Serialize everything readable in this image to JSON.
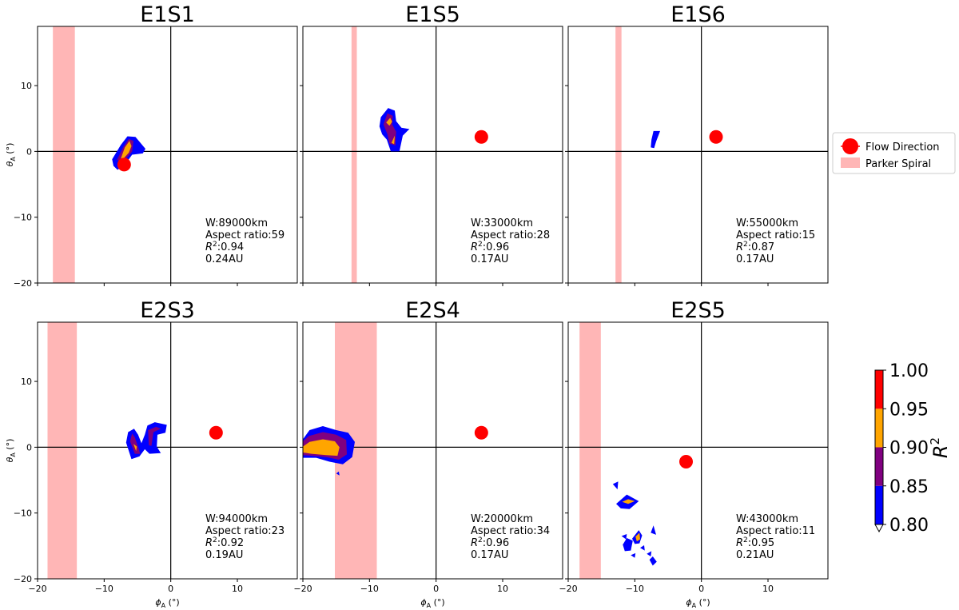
{
  "figure": {
    "x_label": "ϕ",
    "x_sub": "A",
    "x_unit": "(°)",
    "y_label": "θ",
    "y_sub": "A",
    "y_unit": "(°)"
  },
  "legend": {
    "flow_label": "Flow Direction",
    "parker_label": "Parker Spiral"
  },
  "colorbar": {
    "label": "R",
    "label_sup": "2",
    "levels": [
      0.8,
      0.85,
      0.9,
      0.95,
      1.0
    ],
    "tick_labels": [
      "0.80",
      "0.85",
      "0.90",
      "0.95",
      "1.00"
    ],
    "colors": [
      "#0000ff",
      "#800080",
      "#ffa500",
      "#ff0000"
    ]
  },
  "colors": {
    "flow": "#ff0000",
    "parker": "#ffb6b6",
    "axis": "#000000"
  },
  "chart_data": [
    {
      "type": "contour",
      "title": "E1S1",
      "xlim": [
        -20,
        19
      ],
      "ylim": [
        -20,
        19
      ],
      "xticks": [
        -20,
        -10,
        0,
        10
      ],
      "yticks": [
        -20,
        -10,
        0,
        10
      ],
      "flow_direction": [
        -7,
        -2
      ],
      "parker_spiral": [
        -17.7,
        -14.4
      ],
      "annotations": {
        "w": "W:89000km",
        "aspect": "Aspect ratio:59",
        "r2": "0.94",
        "au": "0.24AU"
      },
      "contours": [
        {
          "level": 0.8,
          "points": [
            [
              -8.8,
              -1.2
            ],
            [
              -7.5,
              1
            ],
            [
              -6.5,
              2.3
            ],
            [
              -5.3,
              2.2
            ],
            [
              -3.8,
              0.4
            ],
            [
              -4.2,
              -0.3
            ],
            [
              -5.8,
              -0.5
            ],
            [
              -7,
              -2.2
            ],
            [
              -8,
              -2.8
            ],
            [
              -8.6,
              -2.2
            ]
          ]
        },
        {
          "level": 0.85,
          "points": [
            [
              -8.1,
              -1.3
            ],
            [
              -7.1,
              0.7
            ],
            [
              -6.3,
              1.9
            ],
            [
              -5.6,
              1.6
            ],
            [
              -5.8,
              0
            ],
            [
              -7.1,
              -1.6
            ]
          ]
        },
        {
          "level": 0.9,
          "points": [
            [
              -7.5,
              -1.1
            ],
            [
              -6.9,
              0.6
            ],
            [
              -6.2,
              1.6
            ],
            [
              -5.9,
              0.8
            ],
            [
              -6.3,
              -0.2
            ],
            [
              -7.1,
              -1.1
            ]
          ]
        }
      ]
    },
    {
      "type": "contour",
      "title": "E1S5",
      "xlim": [
        -20,
        19
      ],
      "ylim": [
        -20,
        19
      ],
      "xticks": [
        -20,
        -10,
        0,
        10
      ],
      "yticks": [
        -20,
        -10,
        0,
        10
      ],
      "flow_direction": [
        6.8,
        2.2
      ],
      "parker_spiral": [
        -12.7,
        -11.9
      ],
      "annotations": {
        "w": "W:33000km",
        "aspect": "Aspect ratio:28",
        "r2": "0.96",
        "au": "0.17AU"
      },
      "contours": [
        {
          "level": 0.8,
          "points": [
            [
              -8.5,
              3.8
            ],
            [
              -8.3,
              5.2
            ],
            [
              -7.2,
              6.6
            ],
            [
              -6.2,
              6.2
            ],
            [
              -6,
              4.6
            ],
            [
              -5.2,
              3.6
            ],
            [
              -4,
              3.4
            ],
            [
              -5,
              2.4
            ],
            [
              -5.5,
              0
            ],
            [
              -6.8,
              0
            ],
            [
              -7.4,
              1.8
            ],
            [
              -8.1,
              2.6
            ]
          ]
        },
        {
          "level": 0.85,
          "points": [
            [
              -7.9,
              4.1
            ],
            [
              -7.3,
              5.8
            ],
            [
              -6.5,
              5.4
            ],
            [
              -6.6,
              4.1
            ],
            [
              -6,
              3
            ],
            [
              -6.1,
              0.9
            ],
            [
              -7,
              1.2
            ],
            [
              -7.3,
              2.6
            ]
          ]
        },
        {
          "level": 0.9,
          "points": [
            [
              -7.5,
              4.4
            ],
            [
              -6.9,
              5.1
            ],
            [
              -6.6,
              4.5
            ],
            [
              -7,
              3.9
            ]
          ]
        },
        {
          "level": 0.9,
          "points": [
            [
              -6.7,
              1.3
            ],
            [
              -6.2,
              2.4
            ],
            [
              -6.3,
              1.1
            ]
          ]
        }
      ]
    },
    {
      "type": "contour",
      "title": "E1S6",
      "xlim": [
        -20,
        19
      ],
      "ylim": [
        -20,
        19
      ],
      "xticks": [
        -20,
        -10,
        0,
        10
      ],
      "yticks": [
        -20,
        -10,
        0,
        10
      ],
      "flow_direction": [
        2.2,
        2.2
      ],
      "parker_spiral": [
        -12.9,
        -12.0
      ],
      "annotations": {
        "w": "W:55000km",
        "aspect": "Aspect ratio:15",
        "r2": "0.87",
        "au": "0.17AU"
      },
      "contours": [
        {
          "level": 0.8,
          "points": [
            [
              -7.5,
              1.8
            ],
            [
              -7.2,
              3.1
            ],
            [
              -6.2,
              3.1
            ],
            [
              -6.8,
              1.5
            ],
            [
              -7.1,
              0.5
            ],
            [
              -7.6,
              0.6
            ]
          ]
        }
      ]
    },
    {
      "type": "contour",
      "title": "E2S3",
      "xlim": [
        -20,
        19
      ],
      "ylim": [
        -20,
        19
      ],
      "xticks": [
        -20,
        -10,
        0,
        10
      ],
      "yticks": [
        -20,
        -10,
        0,
        10
      ],
      "flow_direction": [
        6.8,
        2.2
      ],
      "parker_spiral": [
        -18.5,
        -14.1
      ],
      "annotations": {
        "w": "W:94000km",
        "aspect": "Aspect ratio:23",
        "r2": "0.92",
        "au": "0.19AU"
      },
      "contours": [
        {
          "level": 0.8,
          "points": [
            [
              -6.7,
              0.7
            ],
            [
              -6.4,
              2.3
            ],
            [
              -5.5,
              2.8
            ],
            [
              -4.9,
              1.9
            ],
            [
              -4.4,
              0.6
            ],
            [
              -3.9,
              1.9
            ],
            [
              -3.5,
              3.3
            ],
            [
              -2.4,
              3.8
            ],
            [
              -0.6,
              3.4
            ],
            [
              -0.8,
              2.2
            ],
            [
              -2,
              1.9
            ],
            [
              -2.1,
              0.1
            ],
            [
              -1.5,
              -0.9
            ],
            [
              -3.2,
              -1
            ],
            [
              -3.9,
              -0.3
            ],
            [
              -4.7,
              -1.4
            ],
            [
              -5.9,
              -1.8
            ]
          ]
        },
        {
          "level": 0.85,
          "points": [
            [
              -6.1,
              0.9
            ],
            [
              -5.8,
              2.1
            ],
            [
              -5.4,
              1.5
            ],
            [
              -4.8,
              -0.3
            ],
            [
              -4.6,
              -1
            ],
            [
              -5.4,
              -1
            ]
          ]
        },
        {
          "level": 0.85,
          "points": [
            [
              -3.4,
              2.6
            ],
            [
              -2.2,
              3.1
            ],
            [
              -1.5,
              2.8
            ],
            [
              -2.6,
              2.3
            ],
            [
              -2.9,
              0.2
            ],
            [
              -3.3,
              0.3
            ]
          ]
        },
        {
          "level": 0.9,
          "points": [
            [
              -5.6,
              0.5
            ],
            [
              -5.1,
              0.1
            ],
            [
              -5.2,
              -0.6
            ]
          ]
        }
      ]
    },
    {
      "type": "contour",
      "title": "E2S4",
      "xlim": [
        -20,
        19
      ],
      "ylim": [
        -20,
        19
      ],
      "xticks": [
        -20,
        -10,
        0,
        10
      ],
      "yticks": [
        -20,
        -10,
        0,
        10
      ],
      "flow_direction": [
        6.8,
        2.2
      ],
      "parker_spiral": [
        -15.2,
        -8.9
      ],
      "annotations": {
        "w": "W:20000km",
        "aspect": "Aspect ratio:34",
        "r2": "0.96",
        "au": "0.17AU"
      },
      "contours": [
        {
          "level": 0.8,
          "points": [
            [
              -20,
              1.2
            ],
            [
              -19,
              2.6
            ],
            [
              -17,
              3.2
            ],
            [
              -15,
              2.6
            ],
            [
              -13.2,
              2.2
            ],
            [
              -12.2,
              0.8
            ],
            [
              -12.6,
              -1.5
            ],
            [
              -14,
              -2.6
            ],
            [
              -16,
              -2.2
            ],
            [
              -18,
              -1.6
            ],
            [
              -20,
              -1.6
            ]
          ]
        },
        {
          "level": 0.85,
          "points": [
            [
              -20,
              0.9
            ],
            [
              -19.1,
              1.7
            ],
            [
              -17,
              2.3
            ],
            [
              -15,
              1.9
            ],
            [
              -13.5,
              1.1
            ],
            [
              -13.4,
              -1.1
            ],
            [
              -14.6,
              -1.9
            ],
            [
              -16.5,
              -1.5
            ],
            [
              -18.5,
              -1.3
            ],
            [
              -20,
              -1.2
            ]
          ]
        },
        {
          "level": 0.9,
          "points": [
            [
              -20,
              0.1
            ],
            [
              -19,
              0.8
            ],
            [
              -17,
              1.2
            ],
            [
              -15.2,
              0.9
            ],
            [
              -14.5,
              0
            ],
            [
              -14.8,
              -1.3
            ],
            [
              -16.5,
              -1.2
            ],
            [
              -18.7,
              -1
            ],
            [
              -20,
              -0.8
            ]
          ]
        },
        {
          "level": 0.8,
          "points": [
            [
              -15,
              -4
            ],
            [
              -14.6,
              -3.7
            ],
            [
              -14.5,
              -4.3
            ]
          ]
        }
      ]
    },
    {
      "type": "contour",
      "title": "E2S5",
      "xlim": [
        -20,
        19
      ],
      "ylim": [
        -20,
        19
      ],
      "xticks": [
        -20,
        -10,
        0,
        10
      ],
      "yticks": [
        -20,
        -10,
        0,
        10
      ],
      "flow_direction": [
        -2.3,
        -2.2
      ],
      "parker_spiral": [
        -18.3,
        -15.1
      ],
      "annotations": {
        "w": "W:43000km",
        "aspect": "Aspect ratio:11",
        "r2": "0.95",
        "au": "0.21AU"
      },
      "contours": [
        {
          "level": 0.8,
          "points": [
            [
              -13.3,
              -5.6
            ],
            [
              -12.5,
              -5.2
            ],
            [
              -12.6,
              -6.4
            ]
          ]
        },
        {
          "level": 0.8,
          "points": [
            [
              -12.8,
              -8.6
            ],
            [
              -11.2,
              -7.2
            ],
            [
              -9.4,
              -8.2
            ],
            [
              -10.8,
              -9.4
            ],
            [
              -12.1,
              -9.3
            ]
          ]
        },
        {
          "level": 0.9,
          "points": [
            [
              -11.9,
              -8.3
            ],
            [
              -11,
              -7.9
            ],
            [
              -10,
              -8.2
            ],
            [
              -11,
              -8.6
            ]
          ]
        },
        {
          "level": 0.8,
          "points": [
            [
              -12,
              -13.5
            ],
            [
              -11.2,
              -13.2
            ],
            [
              -11.3,
              -14
            ]
          ]
        },
        {
          "level": 0.8,
          "points": [
            [
              -11.8,
              -14.8
            ],
            [
              -11.2,
              -13.8
            ],
            [
              -10.3,
              -14.2
            ],
            [
              -10.6,
              -15.7
            ],
            [
              -11.5,
              -15.8
            ]
          ]
        },
        {
          "level": 0.8,
          "points": [
            [
              -10.4,
              -13.9
            ],
            [
              -9.4,
              -12.6
            ],
            [
              -8.9,
              -13.4
            ],
            [
              -9.3,
              -14.6
            ],
            [
              -10,
              -14.7
            ]
          ]
        },
        {
          "level": 0.9,
          "points": [
            [
              -9.9,
              -13.6
            ],
            [
              -9.3,
              -13
            ],
            [
              -9.2,
              -14
            ],
            [
              -9.7,
              -14.3
            ]
          ]
        },
        {
          "level": 0.8,
          "points": [
            [
              -10.6,
              -16.4
            ],
            [
              -9.9,
              -16.1
            ],
            [
              -10,
              -16.8
            ]
          ]
        },
        {
          "level": 0.8,
          "points": [
            [
              -9.2,
              -15.3
            ],
            [
              -8.6,
              -14.9
            ],
            [
              -8.5,
              -15.7
            ]
          ]
        },
        {
          "level": 0.8,
          "points": [
            [
              -8.2,
              -16.2
            ],
            [
              -7.5,
              -15.8
            ],
            [
              -7.6,
              -16.6
            ]
          ]
        },
        {
          "level": 0.8,
          "points": [
            [
              -7.6,
              -13
            ],
            [
              -7.2,
              -11.9
            ],
            [
              -6.8,
              -13.3
            ]
          ]
        },
        {
          "level": 0.8,
          "points": [
            [
              -7.8,
              -17.1
            ],
            [
              -7.3,
              -16.6
            ],
            [
              -6.7,
              -17.4
            ],
            [
              -7.3,
              -18
            ]
          ]
        }
      ]
    }
  ]
}
